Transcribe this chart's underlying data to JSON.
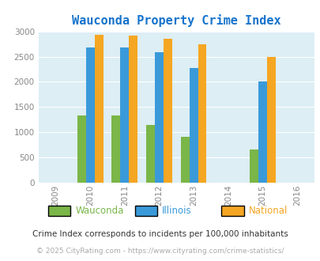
{
  "title": "Wauconda Property Crime Index",
  "title_color": "#1874cd",
  "years": [
    2009,
    2010,
    2011,
    2012,
    2013,
    2014,
    2015,
    2016
  ],
  "bar_years": [
    2010,
    2011,
    2012,
    2013,
    2015
  ],
  "wauconda": [
    1330,
    1330,
    1140,
    910,
    665
  ],
  "illinois": [
    2680,
    2680,
    2590,
    2280,
    2000
  ],
  "national": [
    2930,
    2910,
    2850,
    2740,
    2490
  ],
  "wauconda_color": "#7ab648",
  "illinois_color": "#3a9ad9",
  "national_color": "#f5a623",
  "bg_color": "#ddeef5",
  "ylim": [
    0,
    3000
  ],
  "yticks": [
    0,
    500,
    1000,
    1500,
    2000,
    2500,
    3000
  ],
  "bar_width": 0.25,
  "legend_labels": [
    "Wauconda",
    "Illinois",
    "National"
  ],
  "legend_colors": [
    "#7ab648",
    "#3a9ad9",
    "#f5a623"
  ],
  "footnote1": "Crime Index corresponds to incidents per 100,000 inhabitants",
  "footnote2": "© 2025 CityRating.com - https://www.cityrating.com/crime-statistics/",
  "footnote1_color": "#333333",
  "footnote2_color": "#aaaaaa",
  "tick_color": "#888888"
}
